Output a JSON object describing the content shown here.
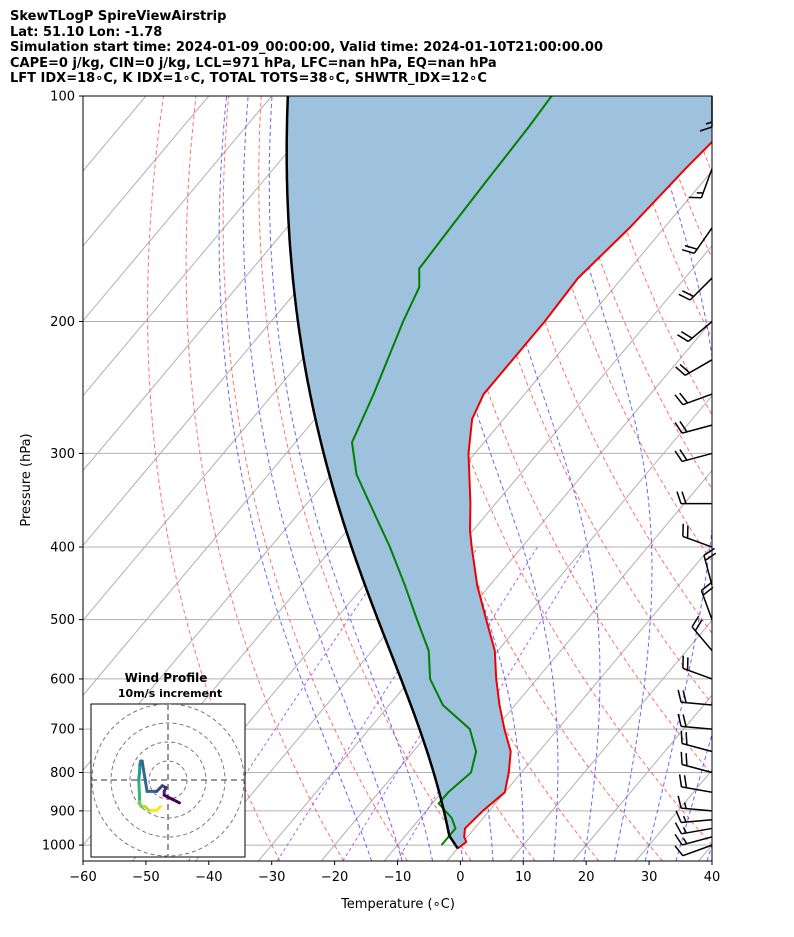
{
  "header": {
    "line1": "SkewTLogP SpireViewAirstrip",
    "line2": "Lat: 51.10   Lon: -1.78",
    "line3": "Simulation start time: 2024-01-09_00:00:00, Valid time: 2024-01-10T21:00:00.00",
    "line4": "CAPE=0 j/kg, CIN=0 j/kg, LCL=971 hPa, LFC=nan hPa, EQ=nan hPa",
    "line5": "LFT IDX=18∘C, K IDX=1∘C, TOTAL TOTS=38∘C, SHWTR_IDX=12∘C"
  },
  "chart_data": {
    "type": "skewt",
    "xlabel": "Temperature (∘C)",
    "ylabel": "Pressure (hPa)",
    "xlim": [
      -60,
      40
    ],
    "ylim": [
      1050,
      100
    ],
    "x_ticks": [
      -60,
      -50,
      -40,
      -30,
      -20,
      -10,
      0,
      10,
      20,
      30,
      40
    ],
    "y_ticks": [
      1000,
      900,
      800,
      700,
      600,
      500,
      400,
      300,
      200,
      100
    ],
    "temperature": [
      {
        "p": 1010,
        "t": 0.0
      },
      {
        "p": 990,
        "t": 0.5
      },
      {
        "p": 975,
        "t": -0.5
      },
      {
        "p": 950,
        "t": -1.5
      },
      {
        "p": 900,
        "t": -1.0
      },
      {
        "p": 850,
        "t": 0.0
      },
      {
        "p": 800,
        "t": -2.0
      },
      {
        "p": 750,
        "t": -4.5
      },
      {
        "p": 700,
        "t": -8.5
      },
      {
        "p": 650,
        "t": -12.5
      },
      {
        "p": 600,
        "t": -16.5
      },
      {
        "p": 550,
        "t": -20.5
      },
      {
        "p": 500,
        "t": -26.0
      },
      {
        "p": 450,
        "t": -32.0
      },
      {
        "p": 400,
        "t": -38.0
      },
      {
        "p": 380,
        "t": -40.5
      },
      {
        "p": 350,
        "t": -44.0
      },
      {
        "p": 300,
        "t": -51.0
      },
      {
        "p": 270,
        "t": -55.0
      },
      {
        "p": 250,
        "t": -56.5
      },
      {
        "p": 200,
        "t": -56.5
      },
      {
        "p": 175,
        "t": -57.0
      },
      {
        "p": 150,
        "t": -55.5
      },
      {
        "p": 125,
        "t": -54.5
      },
      {
        "p": 110,
        "t": -53.5
      },
      {
        "p": 100,
        "t": -53.0
      }
    ],
    "dewpoint": [
      {
        "p": 1000,
        "t": -3.0
      },
      {
        "p": 950,
        "t": -3.0
      },
      {
        "p": 920,
        "t": -5.0
      },
      {
        "p": 880,
        "t": -9.0
      },
      {
        "p": 850,
        "t": -9.0
      },
      {
        "p": 800,
        "t": -8.0
      },
      {
        "p": 750,
        "t": -10.0
      },
      {
        "p": 700,
        "t": -14.0
      },
      {
        "p": 650,
        "t": -21.5
      },
      {
        "p": 600,
        "t": -27.0
      },
      {
        "p": 550,
        "t": -31.0
      },
      {
        "p": 500,
        "t": -37.0
      },
      {
        "p": 450,
        "t": -43.5
      },
      {
        "p": 400,
        "t": -51.0
      },
      {
        "p": 350,
        "t": -60.0
      },
      {
        "p": 320,
        "t": -66.0
      },
      {
        "p": 290,
        "t": -71.0
      },
      {
        "p": 250,
        "t": -74.0
      },
      {
        "p": 200,
        "t": -79.0
      },
      {
        "p": 180,
        "t": -81.0
      },
      {
        "p": 170,
        "t": -83.5
      },
      {
        "p": 150,
        "t": -84.0
      },
      {
        "p": 130,
        "t": -84.5
      },
      {
        "p": 110,
        "t": -85.0
      },
      {
        "p": 100,
        "t": -85.5
      }
    ],
    "parcel": {
      "start_pressure": 1010,
      "start_temperature": 0.0,
      "lcl": 971
    },
    "shading": "area between parcel and temperature (CIN/CAPE)",
    "wind_barbs": [
      {
        "p": 1000,
        "speed_kt": 10,
        "dir": 250
      },
      {
        "p": 975,
        "speed_kt": 15,
        "dir": 255
      },
      {
        "p": 950,
        "speed_kt": 15,
        "dir": 260
      },
      {
        "p": 925,
        "speed_kt": 15,
        "dir": 265
      },
      {
        "p": 900,
        "speed_kt": 15,
        "dir": 275
      },
      {
        "p": 850,
        "speed_kt": 20,
        "dir": 280
      },
      {
        "p": 800,
        "speed_kt": 20,
        "dir": 285
      },
      {
        "p": 750,
        "speed_kt": 20,
        "dir": 285
      },
      {
        "p": 700,
        "speed_kt": 20,
        "dir": 275
      },
      {
        "p": 650,
        "speed_kt": 20,
        "dir": 275
      },
      {
        "p": 600,
        "speed_kt": 20,
        "dir": 290
      },
      {
        "p": 550,
        "speed_kt": 20,
        "dir": 320
      },
      {
        "p": 500,
        "speed_kt": 20,
        "dir": 340
      },
      {
        "p": 450,
        "speed_kt": 20,
        "dir": 345
      },
      {
        "p": 400,
        "speed_kt": 20,
        "dir": 290
      },
      {
        "p": 350,
        "speed_kt": 20,
        "dir": 270
      },
      {
        "p": 300,
        "speed_kt": 20,
        "dir": 255
      },
      {
        "p": 275,
        "speed_kt": 20,
        "dir": 255
      },
      {
        "p": 250,
        "speed_kt": 20,
        "dir": 250
      },
      {
        "p": 225,
        "speed_kt": 20,
        "dir": 240
      },
      {
        "p": 200,
        "speed_kt": 20,
        "dir": 230
      },
      {
        "p": 175,
        "speed_kt": 20,
        "dir": 225
      },
      {
        "p": 150,
        "speed_kt": 20,
        "dir": 215
      },
      {
        "p": 125,
        "speed_kt": 15,
        "dir": 200
      },
      {
        "p": 100,
        "speed_kt": 15,
        "dir": 180
      }
    ],
    "hodograph": {
      "title": "Wind Profile",
      "subtitle": "10m/s increment",
      "ring_step_ms": 10,
      "rings": 4,
      "colormap": "viridis",
      "points_uv": [
        [
          -2,
          -7
        ],
        [
          -3,
          -8
        ],
        [
          -4,
          -8
        ],
        [
          -5,
          -8
        ],
        [
          -6,
          -7
        ],
        [
          -7,
          -7
        ],
        [
          -7.5,
          -6
        ],
        [
          -7.5,
          -5
        ],
        [
          -7.5,
          -4
        ],
        [
          -7.6,
          -2
        ],
        [
          -7.7,
          0
        ],
        [
          -7.5,
          2
        ],
        [
          -7.4,
          4
        ],
        [
          -7.2,
          5
        ],
        [
          -6.8,
          5
        ],
        [
          -6.5,
          3
        ],
        [
          -5.5,
          -3
        ],
        [
          -3,
          -3
        ],
        [
          -1.5,
          -1.5
        ],
        [
          -0.5,
          -2
        ],
        [
          -1,
          -3
        ],
        [
          -1,
          -4
        ],
        [
          1,
          -5
        ],
        [
          3,
          -6
        ]
      ]
    }
  }
}
